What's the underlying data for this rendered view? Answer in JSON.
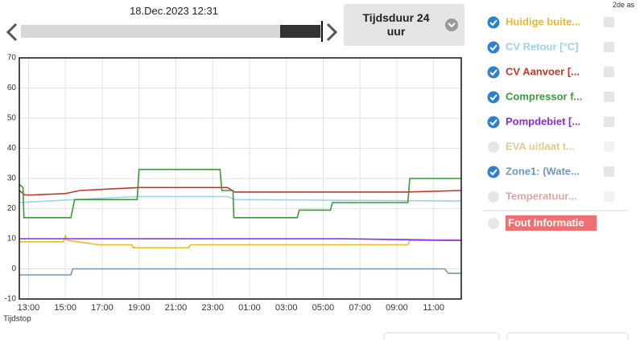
{
  "header": {
    "date": "18.Dec.2023 12:31",
    "duration": "Tijdsduur 24 uur",
    "second_axis": "2de as",
    "error_label": "Fout Informatie"
  },
  "chart_data": {
    "type": "line",
    "xlabel": "Tijdstop",
    "xlim": [
      12.5,
      36.5
    ],
    "xticks": [
      {
        "value": 13,
        "label": "13:00"
      },
      {
        "value": 15,
        "label": "15:00"
      },
      {
        "value": 17,
        "label": "17:00"
      },
      {
        "value": 19,
        "label": "19:00"
      },
      {
        "value": 21,
        "label": "21:00"
      },
      {
        "value": 23,
        "label": "23:00"
      },
      {
        "value": 25,
        "label": "01:00"
      },
      {
        "value": 27,
        "label": "03:00"
      },
      {
        "value": 29,
        "label": "05:00"
      },
      {
        "value": 31,
        "label": "07:00"
      },
      {
        "value": 33,
        "label": "09:00"
      },
      {
        "value": 35,
        "label": "11:00"
      }
    ],
    "ylim": [
      -10,
      70
    ],
    "yticks": [
      -10,
      0,
      10,
      20,
      30,
      40,
      50,
      60,
      70
    ],
    "grid": true,
    "series": [
      {
        "name": "Huidige buite...",
        "color": "#e8b830",
        "checked": true,
        "x": [
          12.5,
          14.9,
          15.0,
          15.1,
          16.8,
          18.6,
          18.7,
          21.7,
          21.8,
          33.6,
          33.7,
          36.5
        ],
        "values": [
          9,
          9,
          11,
          9.5,
          8,
          8,
          7,
          7,
          8,
          8,
          9.5,
          9.5
        ]
      },
      {
        "name": "CV Retour [°C]",
        "color": "#9fd0ea",
        "checked": true,
        "x": [
          12.5,
          15.5,
          18.9,
          23.8,
          24.2,
          36.5
        ],
        "values": [
          22,
          23,
          24,
          24,
          23,
          22.5
        ]
      },
      {
        "name": "CV Aanvoer [...",
        "color": "#c0392b",
        "checked": true,
        "x": [
          12.5,
          12.8,
          13.2,
          15.0,
          15.8,
          19.0,
          23.8,
          24.2,
          33.6,
          36.5
        ],
        "values": [
          26,
          24.5,
          24.5,
          25,
          26,
          27,
          27,
          25.5,
          25.5,
          26
        ]
      },
      {
        "name": "Compressor f...",
        "color": "#3a9a3a",
        "checked": true,
        "x": [
          12.5,
          12.7,
          12.75,
          15.3,
          15.5,
          18.9,
          19.0,
          23.4,
          23.5,
          24.1,
          24.15,
          27.6,
          27.7,
          29.4,
          29.5,
          33.6,
          33.7,
          36.5
        ],
        "values": [
          28,
          27,
          17,
          17,
          23,
          23,
          33,
          33,
          26,
          26,
          17,
          17,
          19.5,
          19.5,
          22,
          22,
          30,
          30
        ]
      },
      {
        "name": "Pompdebiet [...",
        "color": "#8a2be2",
        "checked": true,
        "x": [
          12.5,
          20,
          30,
          35.5,
          36.5
        ],
        "values": [
          10,
          10,
          10,
          9.5,
          9.5
        ]
      },
      {
        "name": "EVA uitlaat t...",
        "color": "#e6c98f",
        "checked": false
      },
      {
        "name": "Zone1: (Wate...",
        "color": "#6f97b8",
        "checked": true,
        "x": [
          12.5,
          15.3,
          15.4,
          35.6,
          35.8,
          36.5
        ],
        "values": [
          -2,
          -2,
          0,
          0,
          -1.5,
          -1.5
        ]
      },
      {
        "name": "Temperatuur...",
        "color": "#dba8a2",
        "checked": false
      }
    ]
  }
}
